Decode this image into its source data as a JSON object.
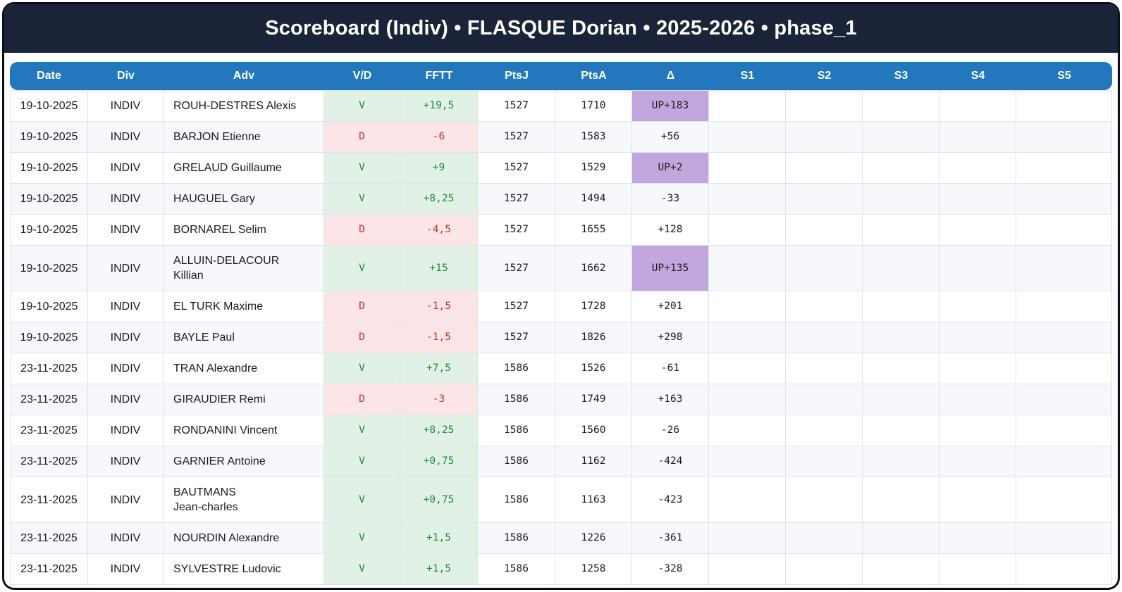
{
  "title": "Scoreboard (Indiv) • FLASQUE Dorian • 2025-2026 • phase_1",
  "table": {
    "columns": [
      "Date",
      "Div",
      "Adv",
      "V/D",
      "FFTT",
      "PtsJ",
      "PtsA",
      "Δ",
      "S1",
      "S2",
      "S3",
      "S4",
      "S5"
    ],
    "rows": [
      {
        "date": "19-10-2025",
        "div": "INDIV",
        "adv": "ROUH-DESTRES Alexis",
        "vd": "V",
        "fftt": "+19,5",
        "ptsj": "1527",
        "ptsa": "1710",
        "delta": "UP+183",
        "delta_up": true,
        "s": [
          "",
          "",
          "",
          "",
          ""
        ]
      },
      {
        "date": "19-10-2025",
        "div": "INDIV",
        "adv": "BARJON Etienne",
        "vd": "D",
        "fftt": "-6",
        "ptsj": "1527",
        "ptsa": "1583",
        "delta": "+56",
        "delta_up": false,
        "s": [
          "",
          "",
          "",
          "",
          ""
        ]
      },
      {
        "date": "19-10-2025",
        "div": "INDIV",
        "adv": "GRELAUD Guillaume",
        "vd": "V",
        "fftt": "+9",
        "ptsj": "1527",
        "ptsa": "1529",
        "delta": "UP+2",
        "delta_up": true,
        "s": [
          "",
          "",
          "",
          "",
          ""
        ]
      },
      {
        "date": "19-10-2025",
        "div": "INDIV",
        "adv": "HAUGUEL Gary",
        "vd": "V",
        "fftt": "+8,25",
        "ptsj": "1527",
        "ptsa": "1494",
        "delta": "-33",
        "delta_up": false,
        "s": [
          "",
          "",
          "",
          "",
          ""
        ]
      },
      {
        "date": "19-10-2025",
        "div": "INDIV",
        "adv": "BORNAREL Selim",
        "vd": "D",
        "fftt": "-4,5",
        "ptsj": "1527",
        "ptsa": "1655",
        "delta": "+128",
        "delta_up": false,
        "s": [
          "",
          "",
          "",
          "",
          ""
        ]
      },
      {
        "date": "19-10-2025",
        "div": "INDIV",
        "adv": "ALLUIN-DELACOUR\nKillian",
        "vd": "V",
        "fftt": "+15",
        "ptsj": "1527",
        "ptsa": "1662",
        "delta": "UP+135",
        "delta_up": true,
        "s": [
          "",
          "",
          "",
          "",
          ""
        ]
      },
      {
        "date": "19-10-2025",
        "div": "INDIV",
        "adv": "EL TURK Maxime",
        "vd": "D",
        "fftt": "-1,5",
        "ptsj": "1527",
        "ptsa": "1728",
        "delta": "+201",
        "delta_up": false,
        "s": [
          "",
          "",
          "",
          "",
          ""
        ]
      },
      {
        "date": "19-10-2025",
        "div": "INDIV",
        "adv": "BAYLE Paul",
        "vd": "D",
        "fftt": "-1,5",
        "ptsj": "1527",
        "ptsa": "1826",
        "delta": "+298",
        "delta_up": false,
        "s": [
          "",
          "",
          "",
          "",
          ""
        ]
      },
      {
        "date": "23-11-2025",
        "div": "INDIV",
        "adv": "TRAN Alexandre",
        "vd": "V",
        "fftt": "+7,5",
        "ptsj": "1586",
        "ptsa": "1526",
        "delta": "-61",
        "delta_up": false,
        "s": [
          "",
          "",
          "",
          "",
          ""
        ]
      },
      {
        "date": "23-11-2025",
        "div": "INDIV",
        "adv": "GIRAUDIER Remi",
        "vd": "D",
        "fftt": "-3",
        "ptsj": "1586",
        "ptsa": "1749",
        "delta": "+163",
        "delta_up": false,
        "s": [
          "",
          "",
          "",
          "",
          ""
        ]
      },
      {
        "date": "23-11-2025",
        "div": "INDIV",
        "adv": "RONDANINI Vincent",
        "vd": "V",
        "fftt": "+8,25",
        "ptsj": "1586",
        "ptsa": "1560",
        "delta": "-26",
        "delta_up": false,
        "s": [
          "",
          "",
          "",
          "",
          ""
        ]
      },
      {
        "date": "23-11-2025",
        "div": "INDIV",
        "adv": "GARNIER Antoine",
        "vd": "V",
        "fftt": "+0,75",
        "ptsj": "1586",
        "ptsa": "1162",
        "delta": "-424",
        "delta_up": false,
        "s": [
          "",
          "",
          "",
          "",
          ""
        ]
      },
      {
        "date": "23-11-2025",
        "div": "INDIV",
        "adv": "BAUTMANS\nJean-charles",
        "vd": "V",
        "fftt": "+0,75",
        "ptsj": "1586",
        "ptsa": "1163",
        "delta": "-423",
        "delta_up": false,
        "s": [
          "",
          "",
          "",
          "",
          ""
        ]
      },
      {
        "date": "23-11-2025",
        "div": "INDIV",
        "adv": "NOURDIN Alexandre",
        "vd": "V",
        "fftt": "+1,5",
        "ptsj": "1586",
        "ptsa": "1226",
        "delta": "-361",
        "delta_up": false,
        "s": [
          "",
          "",
          "",
          "",
          ""
        ]
      },
      {
        "date": "23-11-2025",
        "div": "INDIV",
        "adv": "SYLVESTRE Ludovic",
        "vd": "V",
        "fftt": "+1,5",
        "ptsj": "1586",
        "ptsa": "1258",
        "delta": "-328",
        "delta_up": false,
        "s": [
          "",
          "",
          "",
          "",
          ""
        ]
      }
    ]
  },
  "colors": {
    "title_bar": "#1a2337",
    "card_border": "#0a0f1e",
    "header_blue": "#2377bd",
    "win_bg": "#e2f1e6",
    "win_text": "#1e8a3e",
    "loss_bg": "#fce5e6",
    "loss_text": "#c03434",
    "promotion_bg": "#c2a6de",
    "stripe_bg": "#f6f8fc",
    "grid_line": "#dde4ee"
  }
}
